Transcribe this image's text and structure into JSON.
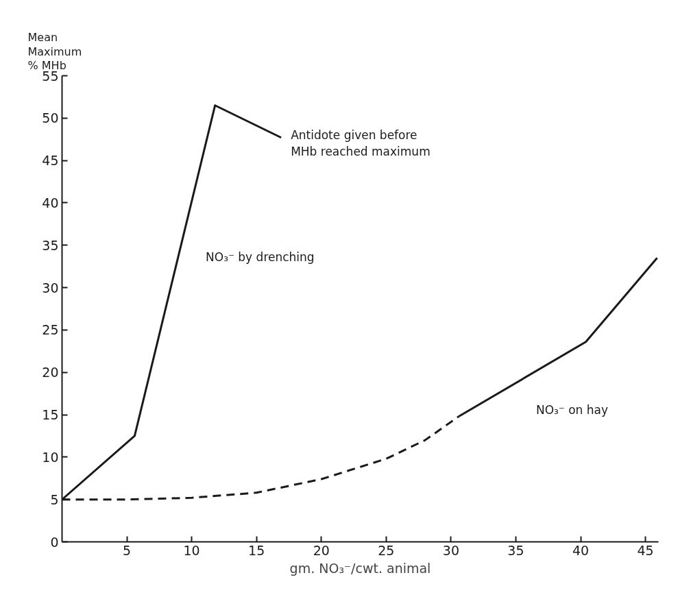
{
  "chart_data": {
    "type": "line",
    "xlabel": "gm. NO₃⁻/cwt. animal",
    "ylabel": "Mean\nMaximum\n% MHb",
    "series": [
      {
        "name": "NO₃⁻ by drenching",
        "color": "#1a1a1a",
        "line_style": "solid",
        "x": [
          0,
          5.6,
          11.8,
          16.9
        ],
        "values": [
          5,
          12.5,
          51.5,
          47.7
        ]
      },
      {
        "color": "#1a1a1a",
        "line_style": "dashed",
        "x": [
          0,
          5,
          10,
          15,
          20,
          25,
          28,
          30.6
        ],
        "values": [
          5,
          5,
          5.2,
          5.8,
          7.4,
          9.8,
          12,
          14.8
        ]
      },
      {
        "name": "NO₃⁻ on hay",
        "color": "#1a1a1a",
        "line_style": "solid",
        "x": [
          30.6,
          40.4,
          45.9
        ],
        "values": [
          14.8,
          23.6,
          33.5
        ]
      }
    ],
    "annotations": [
      {
        "text": "Antidote given before\nMHb reached maximum",
        "x": 16.9,
        "y": 47.7
      }
    ],
    "xlim": [
      0,
      46
    ],
    "ylim": [
      0,
      55
    ],
    "xticks": [
      5,
      10,
      15,
      20,
      25,
      30,
      35,
      40,
      45
    ],
    "yticks": [
      0,
      5,
      10,
      15,
      20,
      25,
      30,
      35,
      40,
      45,
      50,
      55
    ],
    "grid": false,
    "marker": "none"
  }
}
